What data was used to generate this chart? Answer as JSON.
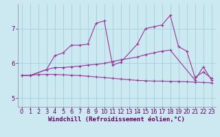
{
  "xlabel": "Windchill (Refroidissement éolien,°C)",
  "bg_color": "#cce8f0",
  "line_color": "#993399",
  "xlim": [
    -0.5,
    23.5
  ],
  "ylim": [
    4.75,
    7.7
  ],
  "xticks": [
    0,
    1,
    2,
    3,
    4,
    5,
    6,
    7,
    8,
    9,
    10,
    11,
    12,
    13,
    14,
    15,
    16,
    17,
    18,
    19,
    20,
    21,
    22,
    23
  ],
  "yticks": [
    5,
    6,
    7
  ],
  "series1": [
    5.65,
    5.65,
    5.82,
    6.22,
    6.3,
    6.52,
    6.52,
    6.55,
    7.15,
    7.22,
    5.95,
    6.03,
    6.55,
    7.0,
    7.05,
    7.1,
    7.38,
    6.48,
    6.35,
    5.6,
    5.75,
    5.57
  ],
  "series1_x": [
    0,
    1,
    3,
    4,
    5,
    6,
    7,
    8,
    9,
    10,
    11,
    12,
    14,
    15,
    16,
    17,
    18,
    19,
    20,
    21,
    22,
    23
  ],
  "series2": [
    5.65,
    5.65,
    5.82,
    5.88,
    5.88,
    5.9,
    5.92,
    5.95,
    5.97,
    6.0,
    6.05,
    6.1,
    6.18,
    6.25,
    6.3,
    6.35,
    6.38,
    5.52,
    5.9,
    5.52
  ],
  "series2_x": [
    0,
    1,
    3,
    4,
    5,
    6,
    7,
    8,
    9,
    10,
    11,
    12,
    14,
    15,
    16,
    17,
    18,
    21,
    22,
    23
  ],
  "series3": [
    5.65,
    5.65,
    5.68,
    5.68,
    5.68,
    5.67,
    5.66,
    5.65,
    5.63,
    5.61,
    5.59,
    5.57,
    5.55,
    5.53,
    5.51,
    5.5,
    5.49,
    5.49,
    5.48,
    5.48,
    5.47,
    5.46,
    5.45,
    5.44
  ],
  "series3_x": [
    0,
    1,
    2,
    3,
    4,
    5,
    6,
    7,
    8,
    9,
    10,
    11,
    12,
    13,
    14,
    15,
    16,
    17,
    18,
    19,
    20,
    21,
    22,
    23
  ],
  "marker": "+",
  "markersize": 3,
  "linewidth": 0.8,
  "grid_color": "#99ccdd",
  "font_color": "#660066",
  "xlabel_fontsize": 6.5,
  "tick_fontsize": 6
}
